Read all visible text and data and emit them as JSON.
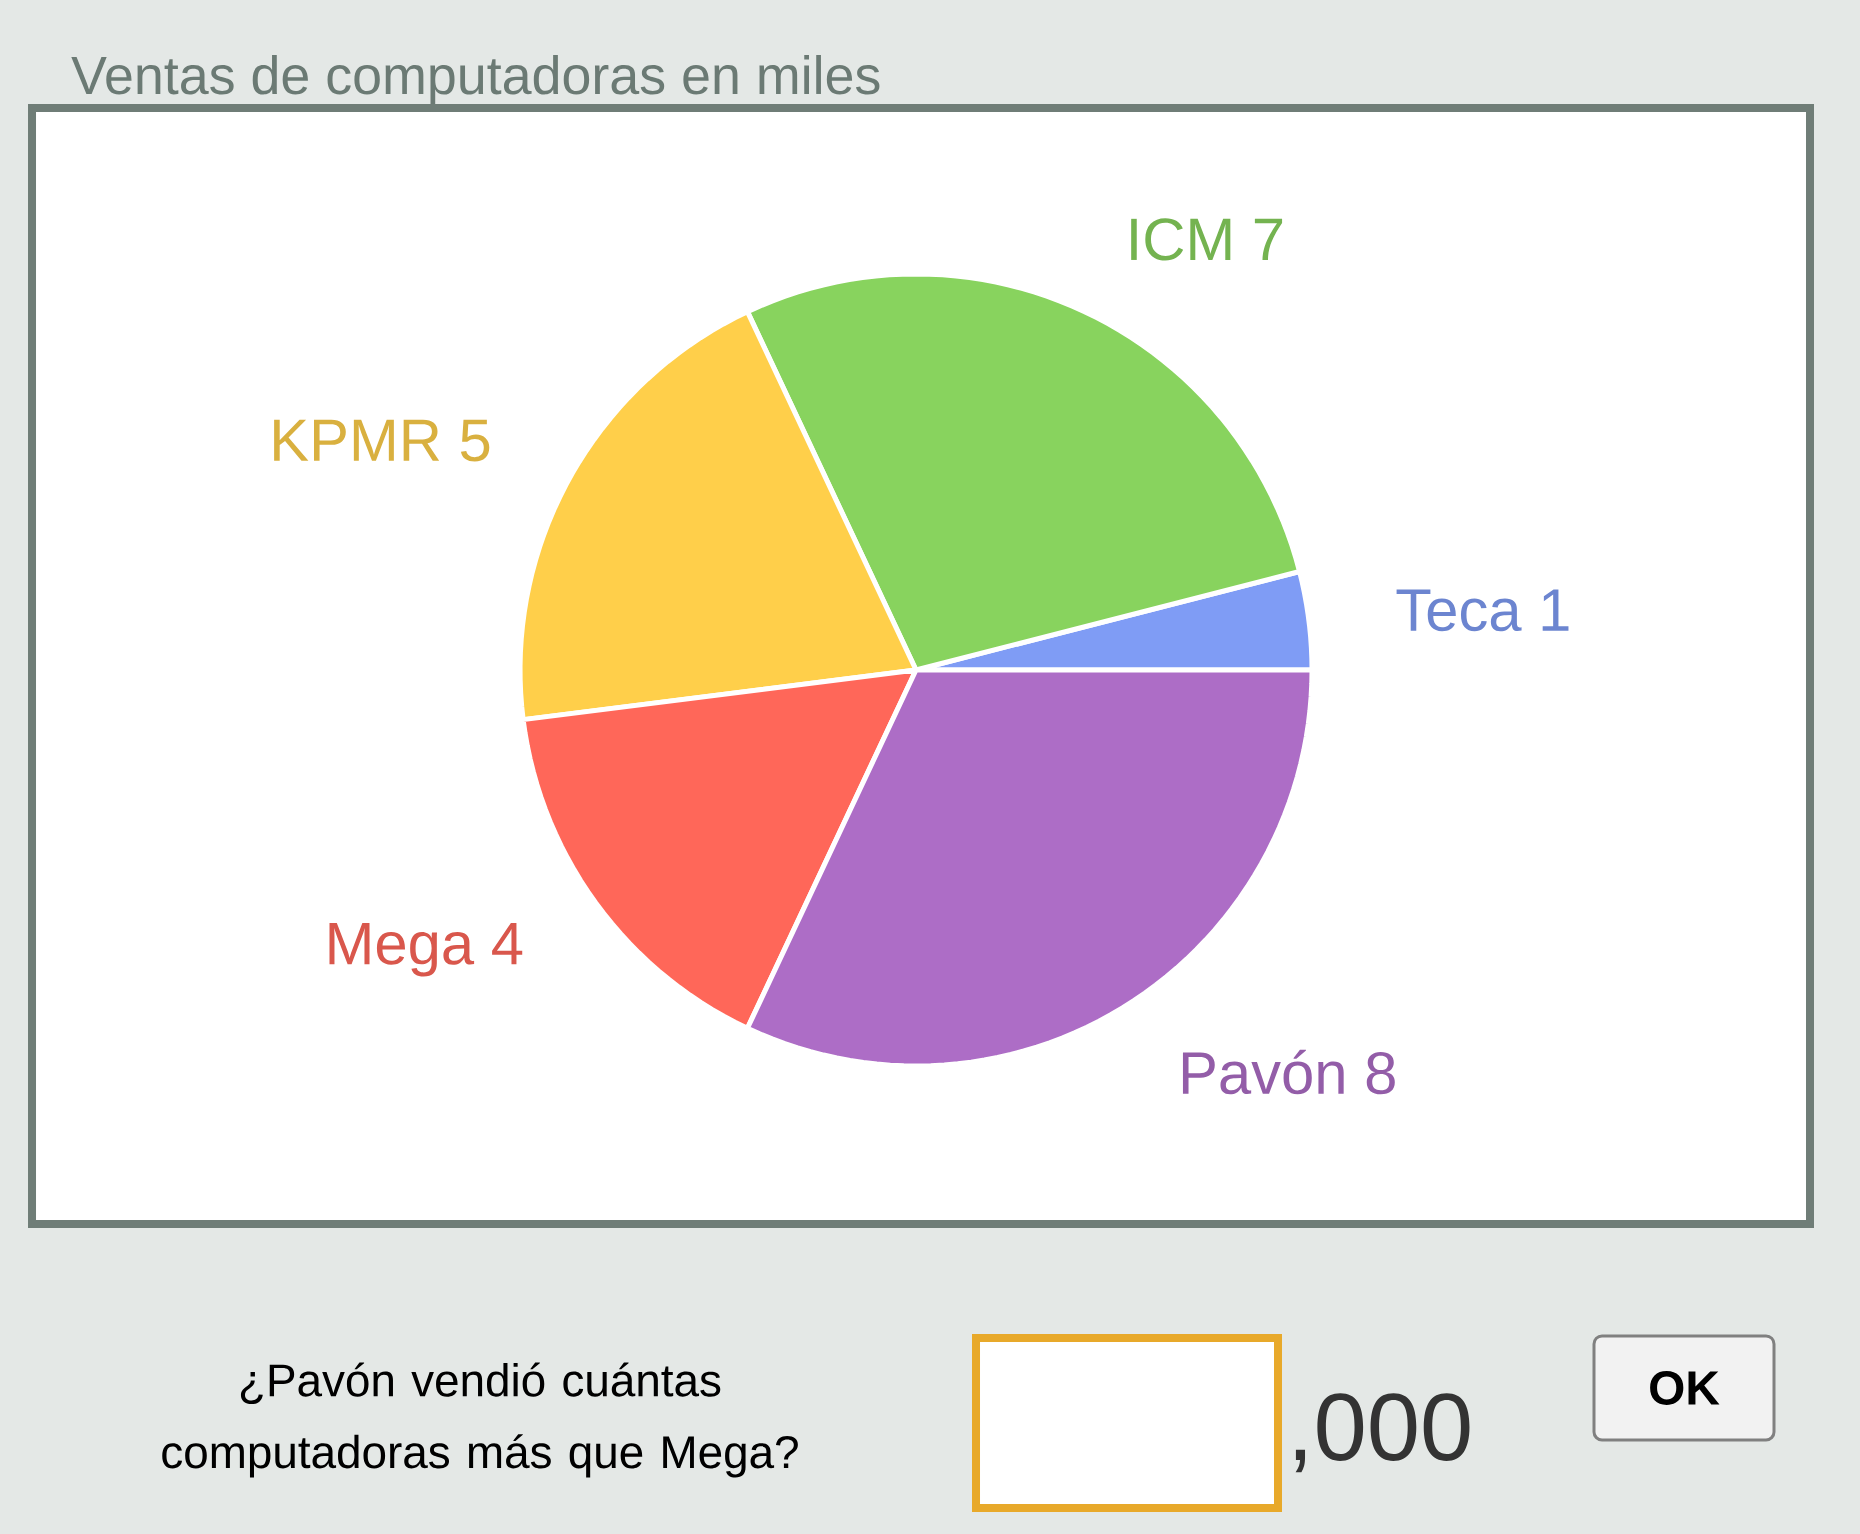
{
  "chart_data": {
    "type": "pie",
    "title": "Ventas de computadoras en miles",
    "categories": [
      "Teca",
      "ICM",
      "KPMR",
      "Mega",
      "Pavón"
    ],
    "values": [
      1,
      7,
      5,
      4,
      8
    ],
    "colors": [
      "#7f9cf5",
      "#88d35e",
      "#ffcf4a",
      "#ff6759",
      "#ad6dc6"
    ],
    "data_labels": true,
    "annotations": [
      "¿Pavón vendió cuántas computadoras más que Mega?",
      ",000",
      "OK"
    ]
  }
}
